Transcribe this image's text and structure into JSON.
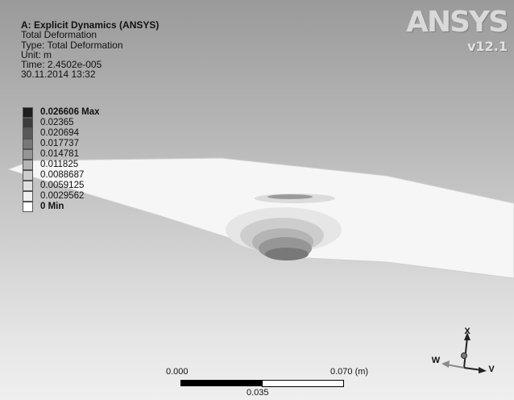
{
  "header": {
    "title": "A: Explicit Dynamics (ANSYS)",
    "result_name": "Total Deformation",
    "type": "Type: Total Deformation",
    "unit": "Unit: m",
    "time": "Time: 2.4502e-005",
    "date": "30.11.2014 13:32"
  },
  "logo": {
    "brand": "ANSYS",
    "version": "v12.1"
  },
  "legend": {
    "items": [
      {
        "label": "0.026606 Max",
        "color": "#1e1e1e"
      },
      {
        "label": "0.02365",
        "color": "#3c3c3c"
      },
      {
        "label": "0.020694",
        "color": "#5a5a5a"
      },
      {
        "label": "0.017737",
        "color": "#787878"
      },
      {
        "label": "0.014781",
        "color": "#969696"
      },
      {
        "label": "0.011825",
        "color": "#b4b4b4"
      },
      {
        "label": "0.0088687",
        "color": "#cdcdcd"
      },
      {
        "label": "0.0059125",
        "color": "#e0e0e0"
      },
      {
        "label": "0.0029562",
        "color": "#f0f0f0"
      },
      {
        "label": "0 Min",
        "color": "#ffffff"
      }
    ]
  },
  "scale_bar": {
    "left_label": "0.000",
    "right_label": "0.070 (m)",
    "mid_label": "0.035"
  },
  "triad": {
    "x": "X",
    "w": "W",
    "v": "V"
  }
}
